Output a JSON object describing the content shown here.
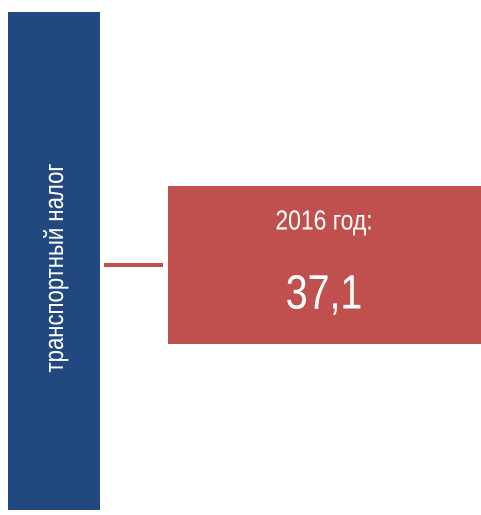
{
  "label": "транспортный налог",
  "box": {
    "period": "2016 год:",
    "value": "37,1"
  }
}
